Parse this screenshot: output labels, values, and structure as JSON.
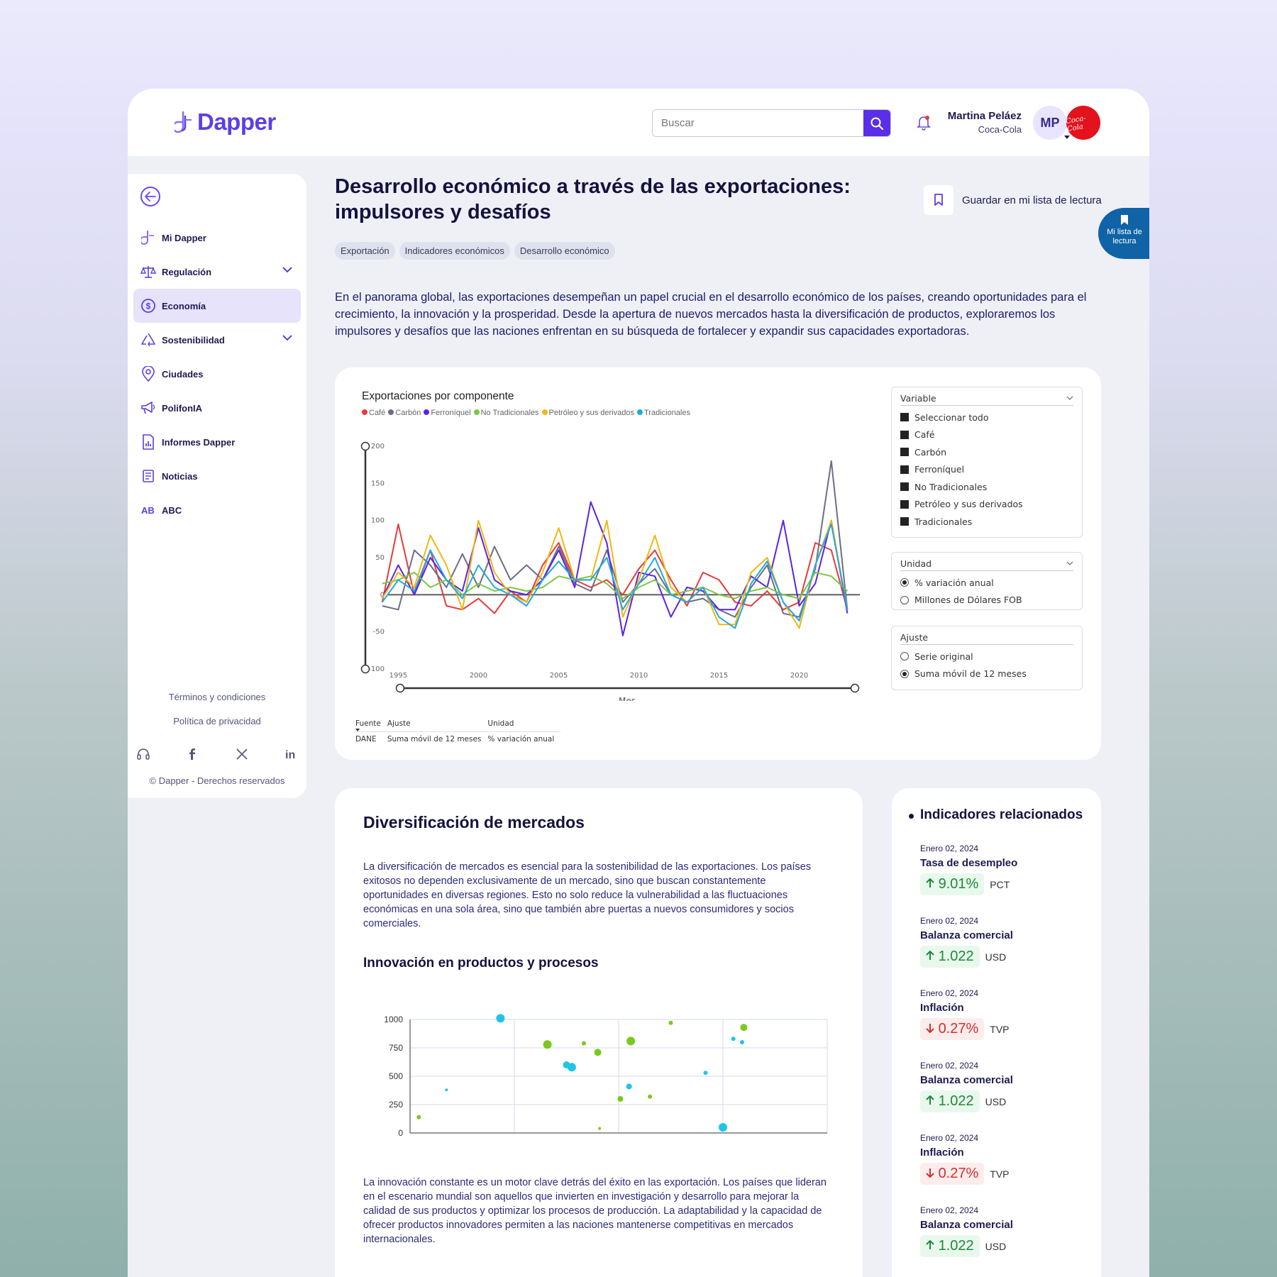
{
  "brand": {
    "name": "Dapper"
  },
  "search": {
    "placeholder": "Buscar"
  },
  "user": {
    "name": "Martina Peláez",
    "company": "Coca-Cola",
    "initials": "MP",
    "company_logo": "Coca-Cola"
  },
  "sidebar": {
    "items": [
      {
        "label": "Mi Dapper",
        "icon": "dapper-icon"
      },
      {
        "label": "Regulación",
        "icon": "scale-icon",
        "expandable": true
      },
      {
        "label": "Economía",
        "icon": "dollar-icon",
        "active": true
      },
      {
        "label": "Sostenibilidad",
        "icon": "recycle-icon",
        "expandable": true
      },
      {
        "label": "Ciudades",
        "icon": "location-pin-icon"
      },
      {
        "label": "PolifonIA",
        "icon": "megaphone-icon"
      },
      {
        "label": "Informes Dapper",
        "icon": "report-icon"
      },
      {
        "label": "Noticias",
        "icon": "news-icon"
      },
      {
        "label": "ABC",
        "icon": "abc-icon"
      }
    ],
    "terms": "Términos y condiciones",
    "privacy": "Política de privacidad",
    "copyright": "© Dapper - Derechos reservados"
  },
  "article": {
    "title": "Desarrollo económico a través de las exportaciones: impulsores y desafíos",
    "save_label": "Guardar en mi lista de lectura",
    "reading_list_badge": "Mi lista de lectura",
    "tags": [
      "Exportación",
      "Indicadores económicos",
      "Desarrollo económico"
    ],
    "intro": "En el panorama global, las exportaciones desempeñan un papel crucial en el desarrollo económico de los países, creando oportunidades para el crecimiento, la innovación y la prosperidad. Desde la apertura de nuevos mercados hasta la diversificación de productos, exploraremos los impulsores y desafíos que las naciones enfrentan en su búsqueda de fortalecer y expandir sus capacidades exportadoras.",
    "section1_title": "Diversificación de mercados",
    "section1_text": "La diversificación de mercados es esencial para la sostenibilidad de las exportaciones. Los países exitosos no dependen exclusivamente de un mercado, sino que buscan constantemente oportunidades en diversas regiones. Esto no solo reduce la vulnerabilidad a las fluctuaciones económicas en una sola área, sino que también abre puertas a nuevos consumidores y socios comerciales.",
    "section2_title": "Innovación en productos y procesos",
    "section2_text": "La innovación constante es un motor clave detrás del éxito en las exportación. Los países que lideran en el escenario mundial son aquellos que invierten en investigación y desarrollo para mejorar la calidad de sus productos y optimizar los procesos de producción. La adaptabilidad y la capacidad de ofrecer productos innovadores permiten a las naciones mantenerse competitivas en mercados internacionales."
  },
  "filters": {
    "variable": {
      "label": "Variable",
      "options": [
        "Seleccionar todo",
        "Café",
        "Carbón",
        "Ferroníquel",
        "No Tradicionales",
        "Petróleo y sus derivados",
        "Tradicionales"
      ]
    },
    "unidad": {
      "label": "Unidad",
      "options": [
        "% variación anual",
        "Millones de Dólares FOB"
      ],
      "selected": 0
    },
    "ajuste": {
      "label": "Ajuste",
      "options": [
        "Serie original",
        "Suma móvil de 12 meses"
      ],
      "selected": 1
    }
  },
  "meta": {
    "headers": [
      "Fuente",
      "Ajuste",
      "Unidad"
    ],
    "values": [
      "DANE",
      "Suma móvil de 12 meses",
      "% variación anual"
    ]
  },
  "related": {
    "title": "Indicadores relacionados",
    "items": [
      {
        "date": "Enero 02, 2024",
        "name": "Tasa de desempleo",
        "value": "9.01%",
        "unit": "PCT",
        "dir": "up"
      },
      {
        "date": "Enero 02, 2024",
        "name": "Balanza comercial",
        "value": "1.022",
        "unit": "USD",
        "dir": "up"
      },
      {
        "date": "Enero 02, 2024",
        "name": "Inflación",
        "value": "0.27%",
        "unit": "TVP",
        "dir": "down"
      },
      {
        "date": "Enero 02, 2024",
        "name": "Balanza comercial",
        "value": "1.022",
        "unit": "USD",
        "dir": "up"
      },
      {
        "date": "Enero 02, 2024",
        "name": "Inflación",
        "value": "0.27%",
        "unit": "TVP",
        "dir": "down"
      },
      {
        "date": "Enero 02, 2024",
        "name": "Balanza comercial",
        "value": "1.022",
        "unit": "USD",
        "dir": "up"
      }
    ]
  },
  "chart_data": [
    {
      "type": "line",
      "title": "Exportaciones por componente",
      "xlabel": "Mes",
      "ylabel": "",
      "ylim": [
        -100,
        200
      ],
      "xlim": [
        1993.7,
        2024
      ],
      "x_ticks": [
        1995,
        2000,
        2005,
        2010,
        2015,
        2020
      ],
      "y_ticks": [
        200,
        150,
        100,
        50,
        0,
        -50,
        -100
      ],
      "legend_position": "top-left",
      "x": [
        1994,
        1995,
        1996,
        1997,
        1998,
        1999,
        2000,
        2001,
        2002,
        2003,
        2004,
        2005,
        2006,
        2007,
        2008,
        2009,
        2010,
        2011,
        2012,
        2013,
        2014,
        2015,
        2016,
        2017,
        2018,
        2019,
        2020,
        2021,
        2022,
        2023
      ],
      "series": [
        {
          "name": "Café",
          "color": "#e63b3b",
          "values": [
            -10,
            95,
            0,
            60,
            -15,
            -20,
            -5,
            -25,
            5,
            -10,
            40,
            70,
            20,
            10,
            20,
            0,
            35,
            60,
            20,
            -15,
            30,
            20,
            -10,
            -15,
            5,
            -20,
            -10,
            70,
            60,
            -20
          ]
        },
        {
          "name": "Carbón",
          "color": "#6b6f84",
          "values": [
            -15,
            -20,
            60,
            40,
            10,
            55,
            10,
            65,
            20,
            40,
            20,
            65,
            15,
            5,
            60,
            -10,
            15,
            35,
            0,
            -10,
            -5,
            -20,
            -30,
            10,
            40,
            -25,
            -30,
            35,
            180,
            -20
          ]
        },
        {
          "name": "Ferroníquel",
          "color": "#5b23e6",
          "values": [
            -5,
            40,
            0,
            50,
            20,
            5,
            90,
            20,
            5,
            0,
            20,
            60,
            10,
            125,
            70,
            -55,
            30,
            25,
            -30,
            10,
            5,
            -20,
            -20,
            25,
            10,
            100,
            -15,
            15,
            100,
            -25
          ]
        },
        {
          "name": "No Tradicionales",
          "color": "#7ac943",
          "values": [
            15,
            20,
            30,
            10,
            20,
            0,
            15,
            5,
            10,
            5,
            10,
            25,
            20,
            25,
            15,
            -5,
            10,
            20,
            0,
            5,
            10,
            0,
            -5,
            5,
            10,
            0,
            -5,
            30,
            25,
            5
          ]
        },
        {
          "name": "Petróleo y sus derivados",
          "color": "#f2b713",
          "values": [
            -5,
            30,
            10,
            80,
            40,
            -20,
            100,
            30,
            0,
            -10,
            30,
            90,
            20,
            20,
            100,
            -30,
            20,
            80,
            10,
            -10,
            10,
            -40,
            -40,
            30,
            50,
            -10,
            -45,
            40,
            100,
            -20
          ]
        },
        {
          "name": "Tradicionales",
          "color": "#21a9e1",
          "values": [
            -10,
            20,
            5,
            60,
            20,
            -5,
            40,
            10,
            0,
            -15,
            20,
            45,
            20,
            20,
            50,
            -20,
            15,
            50,
            0,
            -10,
            10,
            -30,
            -45,
            15,
            45,
            -10,
            -35,
            40,
            95,
            -20
          ]
        }
      ]
    },
    {
      "type": "scatter",
      "title": "",
      "xlabel": "",
      "ylabel": "",
      "xlim": [
        0,
        12
      ],
      "ylim": [
        0,
        1000
      ],
      "x_ticks": [
        0,
        3,
        6,
        9,
        12
      ],
      "y_ticks": [
        0,
        250,
        500,
        750,
        1000
      ],
      "series": [
        {
          "name": "",
          "color": "#21c4e6",
          "points": [
            [
              1.05,
              380,
              2
            ],
            [
              2.6,
              1010,
              6
            ],
            [
              4.5,
              600,
              5
            ],
            [
              4.65,
              580,
              6
            ],
            [
              6.3,
              410,
              4
            ],
            [
              8.5,
              530,
              3
            ],
            [
              9.0,
              50,
              6
            ],
            [
              9.3,
              830,
              3
            ],
            [
              9.55,
              800,
              3
            ]
          ]
        },
        {
          "name": "",
          "color": "#7bc81e",
          "points": [
            [
              0.25,
              140,
              3
            ],
            [
              3.95,
              780,
              6
            ],
            [
              5.0,
              790,
              3
            ],
            [
              5.4,
              710,
              5
            ],
            [
              5.45,
              40,
              2
            ],
            [
              6.05,
              300,
              4
            ],
            [
              6.35,
              810,
              6
            ],
            [
              6.9,
              320,
              3
            ],
            [
              7.5,
              970,
              3
            ],
            [
              9.6,
              930,
              5
            ]
          ]
        }
      ]
    }
  ]
}
